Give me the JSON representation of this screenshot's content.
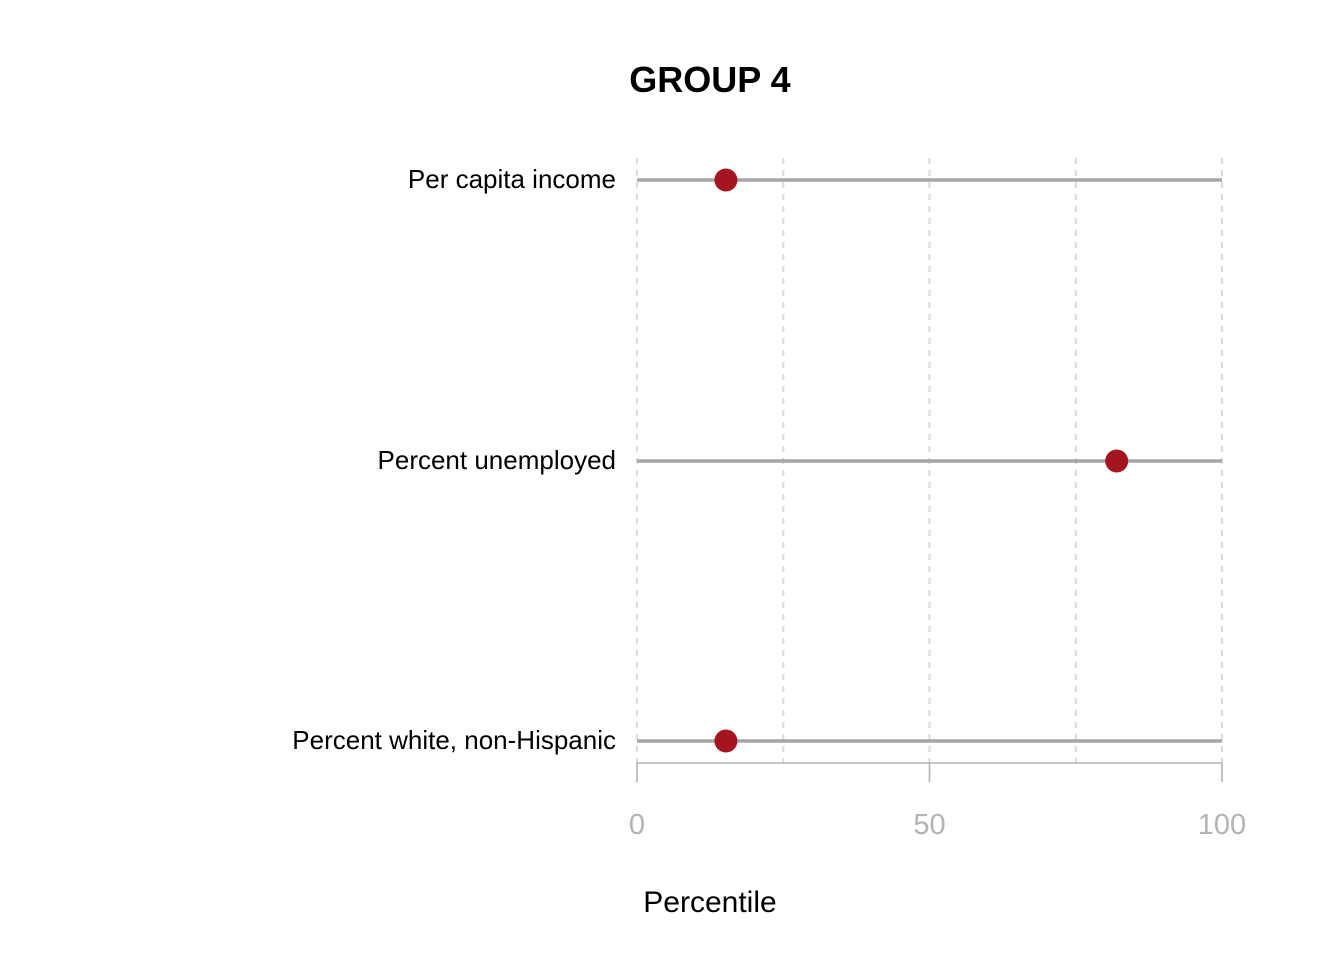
{
  "chart_data": {
    "type": "scatter",
    "title": "GROUP 4",
    "xlabel": "Percentile",
    "ylabel": "",
    "xlim": [
      0,
      100
    ],
    "xticks": [
      0,
      50,
      100
    ],
    "minor_gridlines": [
      0,
      25,
      50,
      75,
      100
    ],
    "grid": "vertical dashed",
    "categories": [
      "Per capita income",
      "Percent unemployed",
      "Percent white, non-Hispanic"
    ],
    "values": [
      15.2,
      82,
      15.2
    ],
    "colors": {
      "point": "#a5151f",
      "range_line": "#a6a6a6",
      "grid": "#dcdcdc",
      "axis": "#b3b3b3"
    }
  }
}
